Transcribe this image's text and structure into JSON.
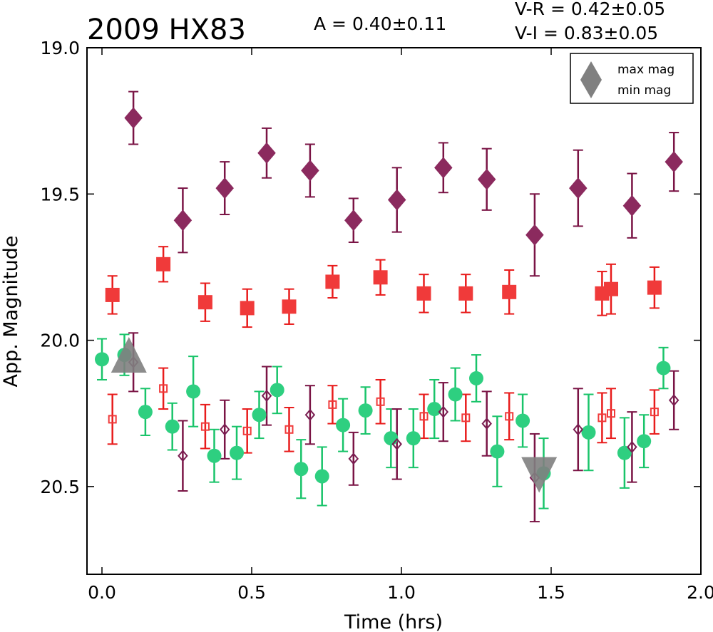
{
  "header": {
    "title": "2009 HX83",
    "amplitude": "A  = 0.40±0.11",
    "vr": "V-R = 0.42±0.05",
    "vi": "V-I  = 0.83±0.05"
  },
  "legend": {
    "max_label": "max mag",
    "min_label": "min mag",
    "color": "#808080"
  },
  "chart_data": {
    "type": "scatter",
    "xlabel": "Time (hrs)",
    "ylabel": "App. Magnitude",
    "xlim": [
      -0.05,
      2.0
    ],
    "ylim": [
      20.8,
      19.0
    ],
    "y_inverted": true,
    "xticks": [
      "0.0",
      "0.5",
      "1.0",
      "1.5",
      "2.0"
    ],
    "yticks": [
      "19.0",
      "19.5",
      "20.0",
      "20.5"
    ],
    "xtick_values": [
      0.0,
      0.5,
      1.0,
      1.5,
      2.0
    ],
    "ytick_values": [
      19.0,
      19.5,
      20.0,
      20.5
    ],
    "grid": false,
    "legend_position": "top-right",
    "series": [
      {
        "marker": "diamond",
        "filled": true,
        "color": "#8b2a5e",
        "err_color": "#7a1445",
        "points": [
          {
            "x": 0.105,
            "y": 19.24,
            "e": 0.09
          },
          {
            "x": 0.27,
            "y": 19.59,
            "e": 0.11
          },
          {
            "x": 0.41,
            "y": 19.48,
            "e": 0.09
          },
          {
            "x": 0.55,
            "y": 19.36,
            "e": 0.085
          },
          {
            "x": 0.695,
            "y": 19.42,
            "e": 0.09
          },
          {
            "x": 0.84,
            "y": 19.59,
            "e": 0.075
          },
          {
            "x": 0.985,
            "y": 19.52,
            "e": 0.11
          },
          {
            "x": 1.14,
            "y": 19.41,
            "e": 0.085
          },
          {
            "x": 1.285,
            "y": 19.45,
            "e": 0.105
          },
          {
            "x": 1.445,
            "y": 19.64,
            "e": 0.14
          },
          {
            "x": 1.59,
            "y": 19.48,
            "e": 0.13
          },
          {
            "x": 1.77,
            "y": 19.54,
            "e": 0.11
          },
          {
            "x": 1.91,
            "y": 19.39,
            "e": 0.1
          }
        ]
      },
      {
        "marker": "square",
        "filled": true,
        "color": "#f03a3a",
        "err_color": "#e81c1c",
        "points": [
          {
            "x": 0.035,
            "y": 19.845,
            "e": 0.065
          },
          {
            "x": 0.205,
            "y": 19.74,
            "e": 0.06
          },
          {
            "x": 0.345,
            "y": 19.87,
            "e": 0.065
          },
          {
            "x": 0.485,
            "y": 19.89,
            "e": 0.065
          },
          {
            "x": 0.625,
            "y": 19.885,
            "e": 0.06
          },
          {
            "x": 0.77,
            "y": 19.8,
            "e": 0.055
          },
          {
            "x": 0.93,
            "y": 19.785,
            "e": 0.06
          },
          {
            "x": 1.075,
            "y": 19.84,
            "e": 0.065
          },
          {
            "x": 1.215,
            "y": 19.84,
            "e": 0.065
          },
          {
            "x": 1.36,
            "y": 19.835,
            "e": 0.075
          },
          {
            "x": 1.67,
            "y": 19.84,
            "e": 0.075
          },
          {
            "x": 1.7,
            "y": 19.825,
            "e": 0.085
          },
          {
            "x": 1.845,
            "y": 19.82,
            "e": 0.07
          }
        ]
      },
      {
        "marker": "circle",
        "filled": true,
        "color": "#2ecf80",
        "err_color": "#19c46a",
        "points": [
          {
            "x": 0.0,
            "y": 20.065,
            "e": 0.07
          },
          {
            "x": 0.075,
            "y": 20.05,
            "e": 0.07
          },
          {
            "x": 0.145,
            "y": 20.245,
            "e": 0.08
          },
          {
            "x": 0.235,
            "y": 20.295,
            "e": 0.08
          },
          {
            "x": 0.305,
            "y": 20.175,
            "e": 0.12
          },
          {
            "x": 0.375,
            "y": 20.395,
            "e": 0.09
          },
          {
            "x": 0.45,
            "y": 20.385,
            "e": 0.09
          },
          {
            "x": 0.525,
            "y": 20.255,
            "e": 0.08
          },
          {
            "x": 0.585,
            "y": 20.17,
            "e": 0.08
          },
          {
            "x": 0.665,
            "y": 20.44,
            "e": 0.1
          },
          {
            "x": 0.735,
            "y": 20.465,
            "e": 0.1
          },
          {
            "x": 0.805,
            "y": 20.29,
            "e": 0.09
          },
          {
            "x": 0.88,
            "y": 20.24,
            "e": 0.08
          },
          {
            "x": 0.965,
            "y": 20.335,
            "e": 0.1
          },
          {
            "x": 1.04,
            "y": 20.335,
            "e": 0.1
          },
          {
            "x": 1.11,
            "y": 20.235,
            "e": 0.1
          },
          {
            "x": 1.18,
            "y": 20.185,
            "e": 0.09
          },
          {
            "x": 1.25,
            "y": 20.13,
            "e": 0.08
          },
          {
            "x": 1.32,
            "y": 20.38,
            "e": 0.12
          },
          {
            "x": 1.405,
            "y": 20.275,
            "e": 0.09
          },
          {
            "x": 1.475,
            "y": 20.455,
            "e": 0.12
          },
          {
            "x": 1.625,
            "y": 20.315,
            "e": 0.13
          },
          {
            "x": 1.745,
            "y": 20.385,
            "e": 0.12
          },
          {
            "x": 1.81,
            "y": 20.345,
            "e": 0.09
          },
          {
            "x": 1.875,
            "y": 20.095,
            "e": 0.07
          }
        ]
      },
      {
        "marker": "square",
        "filled": false,
        "color": "#f03a3a",
        "err_color": "#e81c1c",
        "points": [
          {
            "x": 0.035,
            "y": 20.27,
            "e": 0.085
          },
          {
            "x": 0.205,
            "y": 20.165,
            "e": 0.07
          },
          {
            "x": 0.345,
            "y": 20.295,
            "e": 0.075
          },
          {
            "x": 0.485,
            "y": 20.31,
            "e": 0.075
          },
          {
            "x": 0.625,
            "y": 20.305,
            "e": 0.075
          },
          {
            "x": 0.77,
            "y": 20.22,
            "e": 0.065
          },
          {
            "x": 0.93,
            "y": 20.21,
            "e": 0.075
          },
          {
            "x": 1.075,
            "y": 20.26,
            "e": 0.075
          },
          {
            "x": 1.215,
            "y": 20.265,
            "e": 0.08
          },
          {
            "x": 1.36,
            "y": 20.26,
            "e": 0.08
          },
          {
            "x": 1.67,
            "y": 20.265,
            "e": 0.085
          },
          {
            "x": 1.7,
            "y": 20.25,
            "e": 0.085
          },
          {
            "x": 1.845,
            "y": 20.245,
            "e": 0.075
          }
        ]
      },
      {
        "marker": "diamond",
        "filled": false,
        "color": "#7a1e52",
        "err_color": "#7a1445",
        "points": [
          {
            "x": 0.105,
            "y": 20.075,
            "e": 0.1
          },
          {
            "x": 0.27,
            "y": 20.395,
            "e": 0.12
          },
          {
            "x": 0.41,
            "y": 20.305,
            "e": 0.1
          },
          {
            "x": 0.55,
            "y": 20.19,
            "e": 0.1
          },
          {
            "x": 0.695,
            "y": 20.255,
            "e": 0.1
          },
          {
            "x": 0.84,
            "y": 20.405,
            "e": 0.09
          },
          {
            "x": 0.985,
            "y": 20.355,
            "e": 0.12
          },
          {
            "x": 1.14,
            "y": 20.245,
            "e": 0.1
          },
          {
            "x": 1.285,
            "y": 20.285,
            "e": 0.11
          },
          {
            "x": 1.445,
            "y": 20.47,
            "e": 0.15
          },
          {
            "x": 1.59,
            "y": 20.305,
            "e": 0.14
          },
          {
            "x": 1.77,
            "y": 20.365,
            "e": 0.12
          },
          {
            "x": 1.91,
            "y": 20.205,
            "e": 0.1
          }
        ]
      }
    ],
    "markers": [
      {
        "kind": "max",
        "x": 0.09,
        "y": 20.065
      },
      {
        "kind": "min",
        "x": 1.46,
        "y": 20.445
      }
    ]
  }
}
